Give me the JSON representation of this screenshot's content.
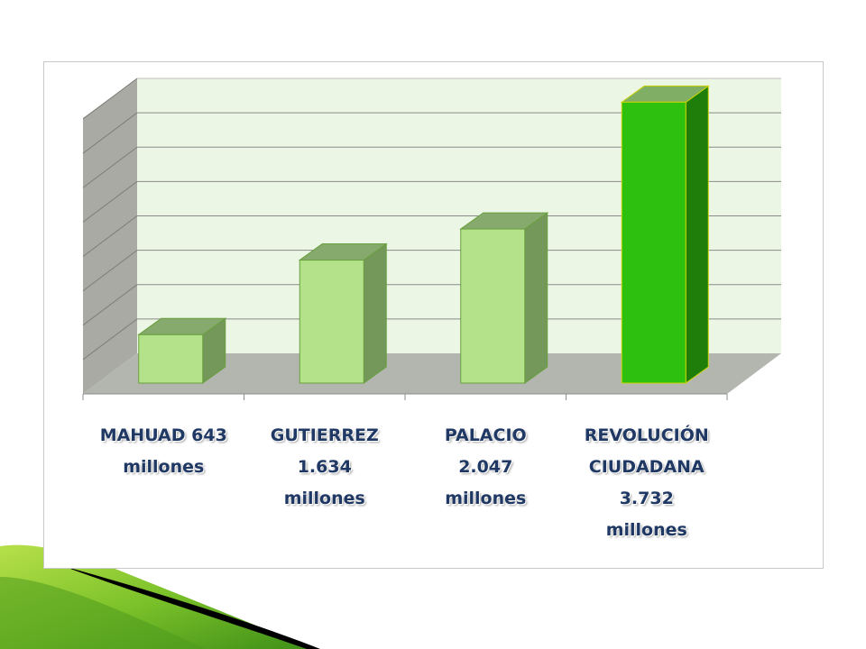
{
  "chart_data": {
    "type": "bar",
    "style": "3d-column",
    "categories": [
      [
        "MAHUAD 643",
        "millones"
      ],
      [
        "GUTIERREZ",
        "1.634",
        "millones"
      ],
      [
        "PALACIO",
        "2.047",
        "millones"
      ],
      [
        "REVOLUCIÓN",
        "CIUDADANA",
        "3.732",
        "millones"
      ]
    ],
    "values": [
      643,
      1634,
      2047,
      3732
    ],
    "ylim": [
      0,
      4000
    ],
    "grid": true,
    "legend": "none",
    "colors": {
      "bar": "#b3e28a",
      "bar_highlight": "#2ec00f",
      "back_wall": "#ebf6e4",
      "side_wall": "#a9a9a3",
      "floor": "#b2b6ad",
      "label_text": "#1f3864"
    }
  },
  "decoration": {
    "swoosh_colors": [
      "#9acd32",
      "#3a8a1a",
      "#000000"
    ]
  }
}
